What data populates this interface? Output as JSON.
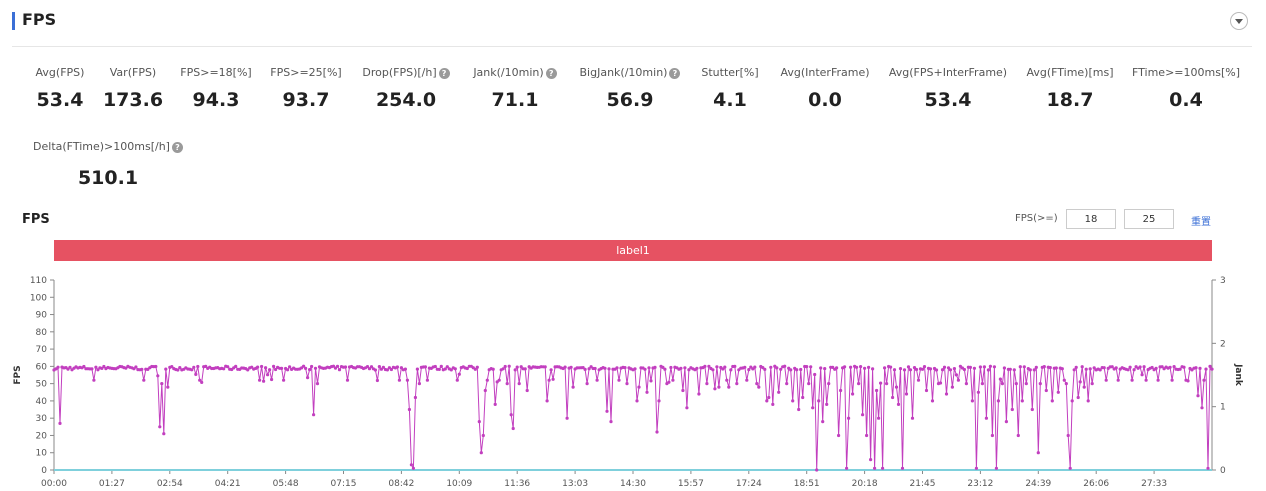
{
  "header": {
    "title": "FPS"
  },
  "metrics": [
    {
      "label": "Avg(FPS)",
      "value": "53.4",
      "help": false
    },
    {
      "label": "Var(FPS)",
      "value": "173.6",
      "help": false
    },
    {
      "label": "FPS>=18[%]",
      "value": "94.3",
      "help": false
    },
    {
      "label": "FPS>=25[%]",
      "value": "93.7",
      "help": false
    },
    {
      "label": "Drop(FPS)[/h]",
      "value": "254.0",
      "help": true
    },
    {
      "label": "Jank(/10min)",
      "value": "71.1",
      "help": true
    },
    {
      "label": "BigJank(/10min)",
      "value": "56.9",
      "help": true
    },
    {
      "label": "Stutter[%]",
      "value": "4.1",
      "help": false
    },
    {
      "label": "Avg(InterFrame)",
      "value": "0.0",
      "help": false
    },
    {
      "label": "Avg(FPS+InterFrame)",
      "value": "53.4",
      "help": false
    },
    {
      "label": "Avg(FTime)[ms]",
      "value": "18.7",
      "help": false
    },
    {
      "label": "FTime>=100ms[%]",
      "value": "0.4",
      "help": false
    },
    {
      "label": "Delta(FTime)>100ms[/h]",
      "value": "510.1",
      "help": true
    }
  ],
  "help_glyph": "?",
  "controls": {
    "threshold_label": "FPS(>=)",
    "threshold_low": "18",
    "threshold_high": "25",
    "reset_label": "重置"
  },
  "colors": {
    "accent": "#3b6fd6",
    "label_band": "#e65262",
    "series_fps": "#c23fbf",
    "series_jank": "#7fd0dc"
  },
  "chart_data": {
    "type": "line",
    "title": "FPS",
    "label_band": "label1",
    "xlabel": "",
    "ylabel": "FPS",
    "y2label": "Jank",
    "ylim": [
      0,
      110
    ],
    "y2lim": [
      0,
      3
    ],
    "yticks": [
      0,
      10,
      20,
      30,
      40,
      50,
      60,
      70,
      80,
      90,
      100,
      110
    ],
    "y2ticks": [
      0,
      1,
      2,
      3
    ],
    "xticks": [
      "00:00",
      "01:27",
      "02:54",
      "04:21",
      "05:48",
      "07:15",
      "08:42",
      "10:09",
      "11:36",
      "13:03",
      "14:30",
      "15:57",
      "17:24",
      "18:51",
      "20:18",
      "21:45",
      "23:12",
      "24:39",
      "26:06",
      "27:33"
    ],
    "x_range_seconds": [
      0,
      1740
    ],
    "grid": false,
    "series": [
      {
        "name": "FPS",
        "axis": "left",
        "baseline": 59,
        "dips": [
          [
            8,
            27
          ],
          [
            60,
            52
          ],
          [
            135,
            52
          ],
          [
            158,
            25
          ],
          [
            162,
            50
          ],
          [
            166,
            21
          ],
          [
            172,
            48
          ],
          [
            220,
            52
          ],
          [
            310,
            52
          ],
          [
            345,
            52
          ],
          [
            390,
            32
          ],
          [
            395,
            50
          ],
          [
            440,
            52
          ],
          [
            520,
            52
          ],
          [
            530,
            52
          ],
          [
            535,
            35
          ],
          [
            537,
            3
          ],
          [
            539,
            8
          ],
          [
            541,
            1
          ],
          [
            544,
            42
          ],
          [
            548,
            50
          ],
          [
            560,
            52
          ],
          [
            605,
            52
          ],
          [
            640,
            28
          ],
          [
            642,
            10
          ],
          [
            645,
            20
          ],
          [
            648,
            46
          ],
          [
            650,
            52
          ],
          [
            662,
            38
          ],
          [
            670,
            52
          ],
          [
            680,
            50
          ],
          [
            686,
            32
          ],
          [
            690,
            24
          ],
          [
            700,
            50
          ],
          [
            712,
            46
          ],
          [
            740,
            52
          ],
          [
            742,
            40
          ],
          [
            745,
            52
          ],
          [
            770,
            30
          ],
          [
            780,
            48
          ],
          [
            800,
            50
          ],
          [
            815,
            52
          ],
          [
            830,
            34
          ],
          [
            836,
            28
          ],
          [
            850,
            52
          ],
          [
            860,
            50
          ],
          [
            875,
            40
          ],
          [
            880,
            48
          ],
          [
            890,
            45
          ],
          [
            905,
            22
          ],
          [
            910,
            40
          ],
          [
            920,
            50
          ],
          [
            930,
            52
          ],
          [
            945,
            46
          ],
          [
            952,
            36
          ],
          [
            970,
            44
          ],
          [
            980,
            50
          ],
          [
            992,
            47
          ],
          [
            1000,
            48
          ],
          [
            1010,
            52
          ],
          [
            1015,
            48
          ],
          [
            1025,
            50
          ],
          [
            1040,
            52
          ],
          [
            1055,
            50
          ],
          [
            1060,
            48
          ],
          [
            1070,
            40
          ],
          [
            1075,
            42
          ],
          [
            1080,
            38
          ],
          [
            1090,
            45
          ],
          [
            1100,
            50
          ],
          [
            1110,
            40
          ],
          [
            1120,
            35
          ],
          [
            1125,
            42
          ],
          [
            1135,
            50
          ],
          [
            1140,
            36
          ],
          [
            1145,
            0
          ],
          [
            1148,
            40
          ],
          [
            1155,
            28
          ],
          [
            1160,
            38
          ],
          [
            1165,
            50
          ],
          [
            1180,
            20
          ],
          [
            1182,
            46
          ],
          [
            1190,
            1
          ],
          [
            1195,
            30
          ],
          [
            1200,
            44
          ],
          [
            1210,
            50
          ],
          [
            1215,
            32
          ],
          [
            1220,
            1
          ],
          [
            1222,
            20
          ],
          [
            1228,
            6
          ],
          [
            1232,
            1
          ],
          [
            1235,
            46
          ],
          [
            1240,
            30
          ],
          [
            1245,
            1
          ],
          [
            1250,
            50
          ],
          [
            1260,
            42
          ],
          [
            1265,
            48
          ],
          [
            1270,
            38
          ],
          [
            1275,
            1
          ],
          [
            1280,
            44
          ],
          [
            1290,
            30
          ],
          [
            1300,
            52
          ],
          [
            1310,
            46
          ],
          [
            1320,
            40
          ],
          [
            1330,
            50
          ],
          [
            1340,
            44
          ],
          [
            1350,
            48
          ],
          [
            1360,
            52
          ],
          [
            1370,
            50
          ],
          [
            1380,
            40
          ],
          [
            1385,
            1
          ],
          [
            1390,
            45
          ],
          [
            1395,
            50
          ],
          [
            1400,
            30
          ],
          [
            1410,
            20
          ],
          [
            1415,
            1
          ],
          [
            1420,
            40
          ],
          [
            1425,
            50
          ],
          [
            1430,
            28
          ],
          [
            1440,
            35
          ],
          [
            1445,
            50
          ],
          [
            1450,
            20
          ],
          [
            1455,
            40
          ],
          [
            1460,
            50
          ],
          [
            1470,
            35
          ],
          [
            1480,
            10
          ],
          [
            1482,
            50
          ],
          [
            1490,
            46
          ],
          [
            1500,
            40
          ],
          [
            1510,
            45
          ],
          [
            1520,
            50
          ],
          [
            1525,
            20
          ],
          [
            1527,
            1
          ],
          [
            1529,
            4
          ],
          [
            1531,
            40
          ],
          [
            1540,
            42
          ],
          [
            1548,
            48
          ],
          [
            1555,
            40
          ],
          [
            1560,
            50
          ],
          [
            1580,
            52
          ],
          [
            1600,
            52
          ],
          [
            1620,
            52
          ],
          [
            1640,
            52
          ],
          [
            1660,
            52
          ],
          [
            1680,
            52
          ],
          [
            1700,
            52
          ],
          [
            1720,
            43
          ],
          [
            1724,
            36
          ],
          [
            1728,
            52
          ],
          [
            1735,
            1
          ]
        ]
      },
      {
        "name": "Jank",
        "axis": "right",
        "values": [
          0
        ]
      }
    ]
  }
}
